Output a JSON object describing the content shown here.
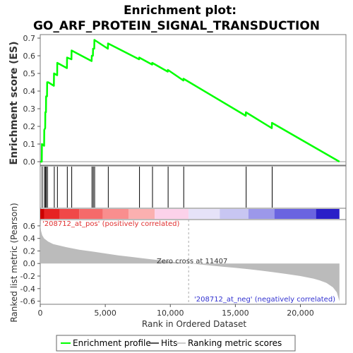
{
  "chart_data": {
    "type": "line",
    "title_line1": "Enrichment plot:",
    "title_line2": "GO_ARF_PROTEIN_SIGNAL_TRANSDUCTION",
    "ylabel_top": "Enrichment score (ES)",
    "ylabel_bottom": "Ranked list metric (Pearson)",
    "xlabel": "Rank in Ordered Dataset",
    "xlim": [
      0,
      23500
    ],
    "x_ticks": [
      0,
      5000,
      10000,
      15000,
      20000
    ],
    "x_tick_labels": [
      "0",
      "5,000",
      "10,000",
      "15,000",
      "20,000"
    ],
    "es_ylim": [
      -0.02,
      0.72
    ],
    "es_ticks": [
      0.0,
      0.1,
      0.2,
      0.3,
      0.4,
      0.5,
      0.6,
      0.7
    ],
    "es_tick_labels": [
      "0.0",
      "0.1",
      "0.2",
      "0.3",
      "0.4",
      "0.5",
      "0.6",
      "0.7"
    ],
    "metric_ylim": [
      -0.65,
      0.7
    ],
    "metric_ticks": [
      0.6,
      0.4,
      0.2,
      0.0,
      -0.2,
      -0.4,
      -0.6
    ],
    "metric_tick_labels": [
      "0.6",
      "0.4",
      "0.2",
      "0.0",
      "-0.2",
      "-0.4",
      "-0.6"
    ],
    "series": [
      {
        "name": "Enrichment profile",
        "color": "#00ff00",
        "x": [
          0,
          120,
          130,
          300,
          310,
          380,
          390,
          440,
          450,
          520,
          530,
          600,
          610,
          1050,
          1060,
          1300,
          1310,
          2050,
          2060,
          2400,
          2410,
          3950,
          3960,
          4050,
          4060,
          4150,
          4160,
          5200,
          5210,
          7600,
          7610,
          8600,
          8610,
          9800,
          9810,
          11000,
          11010,
          15800,
          15810,
          17800,
          17810,
          23000
        ],
        "y": [
          0.0,
          0.0,
          0.1,
          0.09,
          0.18,
          0.19,
          0.28,
          0.28,
          0.37,
          0.37,
          0.45,
          0.45,
          0.45,
          0.43,
          0.5,
          0.49,
          0.56,
          0.53,
          0.59,
          0.58,
          0.63,
          0.57,
          0.6,
          0.6,
          0.64,
          0.64,
          0.69,
          0.64,
          0.67,
          0.58,
          0.59,
          0.55,
          0.56,
          0.51,
          0.52,
          0.46,
          0.47,
          0.26,
          0.28,
          0.19,
          0.22,
          0.0
        ]
      }
    ],
    "hits": [
      150,
      320,
      400,
      460,
      560,
      1080,
      1320,
      2080,
      2420,
      3980,
      4080,
      4180,
      5230,
      7630,
      8630,
      9830,
      11030,
      15830,
      17830
    ],
    "hits_color": "#000000",
    "metric_curve": {
      "name": "Ranking metric scores",
      "color": "#bbbbbb",
      "x": [
        0,
        60,
        150,
        300,
        600,
        1000,
        2000,
        3000,
        4000,
        5000,
        6000,
        7000,
        8000,
        9000,
        10000,
        11000,
        11407,
        12000,
        13000,
        14000,
        15000,
        16000,
        17000,
        18000,
        19000,
        20000,
        21000,
        21500,
        22000,
        22500,
        22800,
        23000
      ],
      "y": [
        0.64,
        0.52,
        0.45,
        0.4,
        0.35,
        0.31,
        0.26,
        0.22,
        0.19,
        0.16,
        0.13,
        0.105,
        0.08,
        0.055,
        0.03,
        0.008,
        0.0,
        -0.01,
        -0.03,
        -0.05,
        -0.07,
        -0.09,
        -0.115,
        -0.14,
        -0.17,
        -0.2,
        -0.24,
        -0.27,
        -0.31,
        -0.38,
        -0.46,
        -0.6
      ]
    },
    "heatmap_bands": [
      {
        "x0": 0,
        "x1": 300,
        "color": "#cc0000"
      },
      {
        "x0": 300,
        "x1": 1500,
        "color": "#e62222"
      },
      {
        "x0": 1500,
        "x1": 3000,
        "color": "#f04848"
      },
      {
        "x0": 3000,
        "x1": 4800,
        "color": "#f56a6a"
      },
      {
        "x0": 4800,
        "x1": 6800,
        "color": "#f98e8e"
      },
      {
        "x0": 6800,
        "x1": 8800,
        "color": "#fbb0b0"
      },
      {
        "x0": 8800,
        "x1": 11400,
        "color": "#fcd2ea"
      },
      {
        "x0": 11400,
        "x1": 13800,
        "color": "#e6e2f8"
      },
      {
        "x0": 13800,
        "x1": 16000,
        "color": "#c8c6f2"
      },
      {
        "x0": 16000,
        "x1": 18000,
        "color": "#9c98ea"
      },
      {
        "x0": 18000,
        "x1": 21200,
        "color": "#6a64e0"
      },
      {
        "x0": 21200,
        "x1": 23000,
        "color": "#2a1fc8"
      }
    ],
    "zero_cross_rank": 11407,
    "annotations": {
      "pos_label": "'208712_at_pos' (positively correlated)",
      "neg_label": "'208712_at_neg' (negatively correlated)",
      "zero_cross_label": "Zero cross at 11407",
      "pos_color": "#e03030",
      "neg_color": "#3030d0"
    },
    "legend": {
      "items": [
        "Enrichment profile",
        "Hits",
        "Ranking metric scores"
      ],
      "colors": [
        "#00ff00",
        "#555555",
        "#cccccc"
      ],
      "placement": "bottom"
    }
  }
}
